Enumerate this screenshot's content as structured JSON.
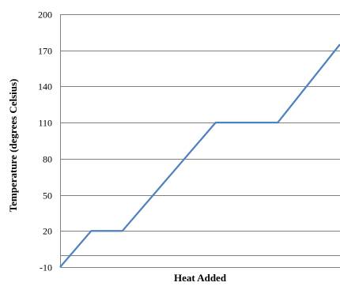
{
  "chart_data": {
    "type": "line",
    "title": "",
    "xlabel": "Heat Added",
    "ylabel": "Temperature (degrees Celsius)",
    "ylim": [
      -10,
      200
    ],
    "yticks": [
      -10,
      20,
      50,
      80,
      110,
      140,
      170,
      200
    ],
    "grid": "horizontal",
    "x_tick_labels": "none",
    "series": [
      {
        "x": [
          0,
          1,
          2,
          5,
          7,
          9
        ],
        "y": [
          -10,
          20,
          20,
          110,
          110,
          175
        ]
      }
    ],
    "colors": {
      "line": "#4f81bd",
      "grid": "#808080",
      "axis": "#808080"
    }
  }
}
